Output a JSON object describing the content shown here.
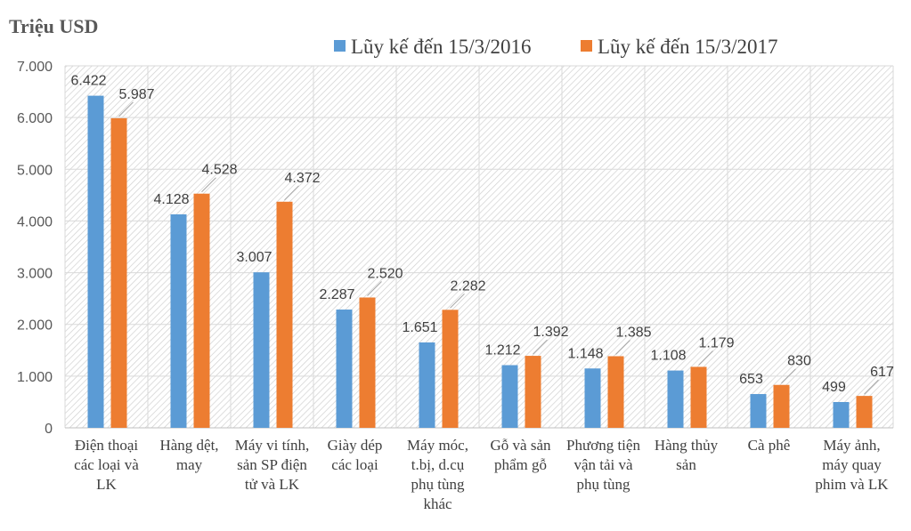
{
  "chart_data": {
    "type": "bar",
    "title": "",
    "ylabel": "Triệu USD",
    "xlabel": "",
    "ylim": [
      0,
      7000
    ],
    "yticks": [
      0,
      1000,
      2000,
      3000,
      4000,
      5000,
      6000,
      7000
    ],
    "ytick_labels": [
      "0",
      "1.000",
      "2.000",
      "3.000",
      "4.000",
      "5.000",
      "6.000",
      "7.000"
    ],
    "grid": true,
    "legend_position": "top",
    "categories": [
      [
        "Điện thoại",
        "các loại và",
        "LK"
      ],
      [
        "Hàng dệt,",
        "may"
      ],
      [
        "Máy vi tính,",
        "sản SP điện",
        "tử và LK"
      ],
      [
        "Giày dép",
        "các loại"
      ],
      [
        "Máy móc,",
        "t.bị, d.cụ",
        "phụ tùng",
        "khác"
      ],
      [
        "Gỗ và sản",
        "phẩm gỗ"
      ],
      [
        "Phương tiện",
        "vận tải và",
        "phụ tùng"
      ],
      [
        "Hàng thủy",
        "sản"
      ],
      [
        "Cà phê"
      ],
      [
        "Máy ảnh,",
        "máy quay",
        "phim và LK"
      ]
    ],
    "series": [
      {
        "name": "Lũy kế đến 15/3/2016",
        "color": "#5b9bd5",
        "values": [
          6422,
          4128,
          3007,
          2287,
          1651,
          1212,
          1148,
          1108,
          653,
          499
        ],
        "labels": [
          "6.422",
          "4.128",
          "3.007",
          "2.287",
          "1.651",
          "1.212",
          "1.148",
          "1.108",
          "653",
          "499"
        ]
      },
      {
        "name": "Lũy kế đến 15/3/2017",
        "color": "#ed7d31",
        "values": [
          5987,
          4528,
          4372,
          2520,
          2282,
          1392,
          1385,
          1179,
          830,
          617
        ],
        "labels": [
          "5.987",
          "4.528",
          "4.372",
          "2.520",
          "2.282",
          "1.392",
          "1.385",
          "1.179",
          "830",
          "617"
        ]
      }
    ]
  }
}
